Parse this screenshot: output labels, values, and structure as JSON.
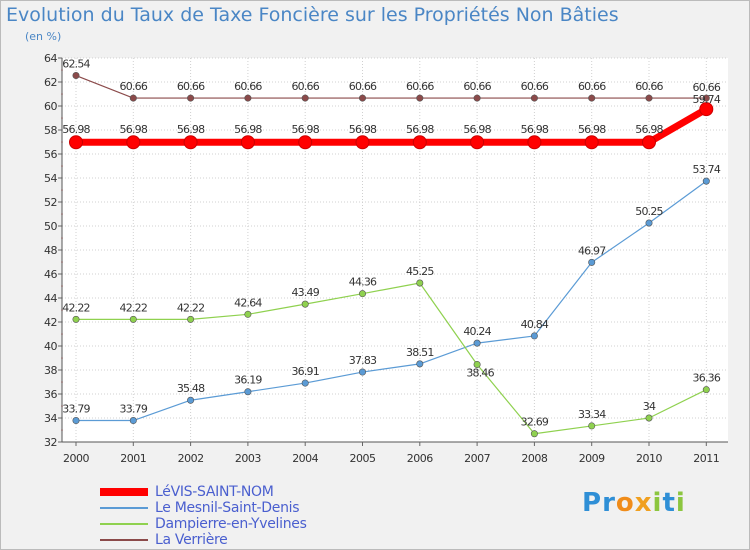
{
  "chart_data": {
    "type": "line",
    "title": "Evolution du Taux de Taxe Foncière sur les Propriétés Non Bâties",
    "subtitle": "(en %)",
    "x": [
      "2000",
      "2001",
      "2002",
      "2003",
      "2004",
      "2005",
      "2006",
      "2007",
      "2008",
      "2009",
      "2010",
      "2011"
    ],
    "ylim": [
      32,
      64
    ],
    "yticks": [
      32,
      34,
      36,
      38,
      40,
      42,
      44,
      46,
      48,
      50,
      52,
      54,
      56,
      58,
      60,
      62,
      64
    ],
    "grid": true,
    "legend_position": "bottom-left",
    "series": [
      {
        "name": "LéVIS-SAINT-NOM",
        "color": "#ff0000",
        "values": [
          56.98,
          56.98,
          56.98,
          56.98,
          56.98,
          56.98,
          56.98,
          56.98,
          56.98,
          56.98,
          56.98,
          59.74
        ],
        "labels": [
          "56.98",
          "56.98",
          "56.98",
          "56.98",
          "56.98",
          "56.98",
          "56.98",
          "56.98",
          "56.98",
          "56.98",
          "56.98",
          "59.74"
        ]
      },
      {
        "name": "Le Mesnil-Saint-Denis",
        "color": "#5b9bd5",
        "values": [
          33.79,
          33.79,
          35.48,
          36.19,
          36.91,
          37.83,
          38.51,
          40.24,
          40.84,
          46.97,
          50.25,
          53.74
        ],
        "labels": [
          "33.79",
          "33.79",
          "35.48",
          "36.19",
          "36.91",
          "37.83",
          "38.51",
          "40.24",
          "40.84",
          "46.97",
          "50.25",
          "53.74"
        ]
      },
      {
        "name": "Dampierre-en-Yvelines",
        "color": "#8fd14f",
        "values": [
          42.22,
          42.22,
          42.22,
          42.64,
          43.49,
          44.36,
          45.25,
          38.46,
          32.69,
          33.34,
          34,
          36.36
        ],
        "labels": [
          "42.22",
          "42.22",
          "42.22",
          "42.64",
          "43.49",
          "44.36",
          "45.25",
          "38.46",
          "32.69",
          "33.34",
          "34",
          "36.36"
        ]
      },
      {
        "name": "La Verrière",
        "color": "#8b4a4a",
        "values": [
          62.54,
          60.66,
          60.66,
          60.66,
          60.66,
          60.66,
          60.66,
          60.66,
          60.66,
          60.66,
          60.66,
          60.66
        ],
        "labels": [
          "62.54",
          "60.66",
          "60.66",
          "60.66",
          "60.66",
          "60.66",
          "60.66",
          "60.66",
          "60.66",
          "60.66",
          "60.66",
          "60.66"
        ]
      }
    ]
  },
  "brand": {
    "letters": [
      {
        "ch": "P",
        "color": "#2f8fd6"
      },
      {
        "ch": "r",
        "color": "#2f8fd6"
      },
      {
        "ch": "o",
        "color": "#f08c1a"
      },
      {
        "ch": "x",
        "color": "#f0a020"
      },
      {
        "ch": "i",
        "color": "#8cc63f"
      },
      {
        "ch": "t",
        "color": "#2f8fd6"
      },
      {
        "ch": "i",
        "color": "#8cc63f"
      }
    ]
  }
}
